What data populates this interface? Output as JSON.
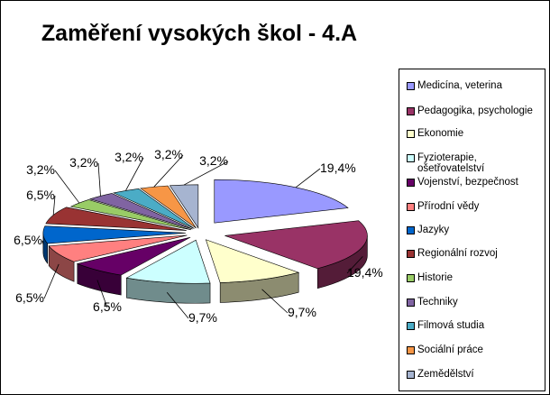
{
  "chart_data": {
    "type": "pie",
    "title": "Zaměření vysokých škol - 4.A",
    "legend_position": "right",
    "categories": [
      "Medicína, veterina",
      "Pedagogika, psychologie",
      "Ekonomie",
      "Fyzioterapie, ošetřovatelství",
      "Vojenství, bezpečnost",
      "Přírodní vědy",
      "Jazyky",
      "Regionální rozvoj",
      "Historie",
      "Techniky",
      "Filmová studia",
      "Sociální práce",
      "Zemědělství"
    ],
    "values": [
      19.4,
      19.4,
      9.7,
      9.7,
      6.5,
      6.5,
      6.5,
      6.5,
      3.2,
      3.2,
      3.2,
      3.2,
      3.2
    ],
    "labels": [
      "19,4%",
      "19,4%",
      "9,7%",
      "9,7%",
      "6,5%",
      "6,5%",
      "6,5%",
      "6,5%",
      "3,2%",
      "3,2%",
      "3,2%",
      "3,2%",
      "3,2%"
    ],
    "colors": [
      "#9999FF",
      "#993366",
      "#FFFFCC",
      "#CCFFFF",
      "#660066",
      "#FF8080",
      "#0066CC",
      "#993333",
      "#99CC66",
      "#8064A2",
      "#4BACC6",
      "#F79646",
      "#A6B4D0"
    ]
  }
}
